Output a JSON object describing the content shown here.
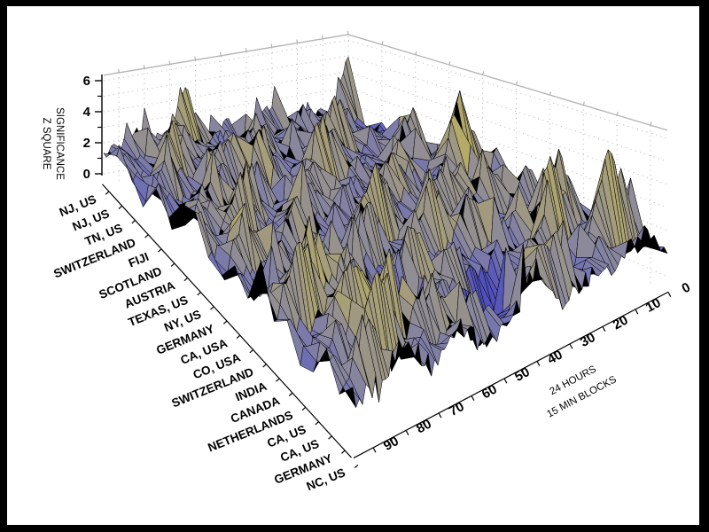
{
  "frame": {
    "border_color": "#000000",
    "panel_color": "#ffffff"
  },
  "chart_data": {
    "type": "surface3d",
    "title": "",
    "x_axis": {
      "title_line1": "24 HOURS",
      "title_line2": "15 MIN BLOCKS",
      "tick_values": [
        90,
        80,
        70,
        60,
        50,
        40,
        30,
        20,
        10,
        0
      ],
      "tick_labels": [
        "90",
        "80",
        "70",
        "60",
        "50",
        "40",
        "30",
        "20",
        "10",
        "0"
      ],
      "minor_tick_step": 5,
      "range": [
        0,
        96
      ]
    },
    "z_axis": {
      "title_line1": "SIGNIFICANCE",
      "title_line2": "Z SQUARE",
      "tick_values": [
        0,
        2,
        4,
        6
      ],
      "tick_labels": [
        "0",
        "2",
        "4",
        "6"
      ],
      "minor_tick_values": [
        1,
        3,
        5
      ],
      "range": [
        -0.6,
        6.35
      ]
    },
    "y_axis": {
      "categories": [
        "NJ, US",
        "NJ, US",
        "TN, US",
        "SWITZERLAND",
        "FIJI",
        "SCOTLAND",
        "AUSTRIA",
        "TEXAS, US",
        "NY, US",
        "GERMANY",
        "CA, USA",
        "CO, USA",
        "SWITZERLAND",
        "INDIA",
        "CANADA",
        "NETHERLANDS",
        "CA, US",
        "CA, US",
        "GERMANY",
        "NC, US"
      ]
    },
    "grid_on": true,
    "legend": "none",
    "wall_grid_color": "#b2b2b2",
    "box_edge_color": "#b2b2b2",
    "mesh_line_color": "#000000",
    "backface_color": "#000000",
    "colormap_stops": [
      [
        -1.0,
        "#1e1e78"
      ],
      [
        -0.2,
        "#2e2ea0"
      ],
      [
        0.6,
        "#5050bc"
      ],
      [
        1.4,
        "#7272b2"
      ],
      [
        2.2,
        "#8f8c96"
      ],
      [
        3.0,
        "#a39b7c"
      ],
      [
        3.8,
        "#b8af64"
      ],
      [
        4.8,
        "#d4ca4e"
      ],
      [
        6.3,
        "#f2e83a"
      ]
    ],
    "z_grid_blocks": [
      0,
      8,
      16,
      24,
      32,
      40,
      48,
      56,
      64,
      72,
      80,
      88,
      96
    ],
    "z_grid": [
      [
        5.0,
        1.4,
        2.0,
        1.2,
        2.6,
        1.5,
        2.2,
        1.0,
        4.8,
        1.6,
        2.4,
        1.8,
        1.2
      ],
      [
        0.8,
        2.2,
        1.4,
        2.8,
        1.2,
        2.0,
        1.0,
        2.4,
        1.6,
        3.0,
        1.2,
        1.8,
        2.2
      ],
      [
        1.5,
        1.0,
        3.2,
        1.2,
        2.5,
        1.5,
        3.5,
        1.0,
        2.2,
        1.4,
        4.2,
        1.2,
        1.6
      ],
      [
        0.6,
        1.8,
        1.2,
        4.5,
        1.0,
        2.2,
        1.4,
        1.8,
        3.8,
        1.2,
        2.0,
        3.2,
        0.8
      ],
      [
        1.8,
        1.2,
        2.6,
        1.0,
        3.4,
        1.8,
        1.2,
        4.4,
        1.4,
        2.6,
        1.6,
        1.2,
        2.4
      ],
      [
        1.0,
        3.6,
        1.4,
        2.0,
        1.2,
        4.8,
        1.6,
        1.2,
        2.8,
        1.0,
        3.4,
        1.8,
        1.2
      ],
      [
        2.2,
        1.2,
        1.8,
        1.4,
        2.4,
        1.2,
        3.0,
        1.6,
        1.2,
        3.6,
        1.4,
        2.6,
        1.8
      ],
      [
        1.4,
        2.8,
        1.0,
        3.2,
        1.4,
        2.2,
        1.2,
        2.6,
        1.8,
        1.2,
        4.6,
        1.4,
        3.0
      ],
      [
        1.2,
        6.0,
        1.4,
        2.2,
        3.6,
        1.2,
        2.6,
        1.4,
        3.0,
        1.6,
        1.4,
        2.4,
        1.2
      ],
      [
        2.6,
        1.4,
        2.0,
        1.2,
        1.8,
        3.4,
        1.2,
        1.8,
        1.4,
        2.8,
        1.6,
        4.0,
        1.0
      ],
      [
        1.2,
        2.4,
        1.2,
        4.2,
        1.6,
        1.2,
        5.2,
        1.4,
        2.0,
        1.2,
        3.0,
        1.4,
        2.6
      ],
      [
        1.8,
        1.2,
        3.4,
        1.4,
        2.8,
        1.8,
        1.4,
        3.8,
        1.2,
        2.4,
        1.4,
        1.8,
        1.2
      ],
      [
        1.0,
        3.0,
        1.4,
        1.8,
        1.2,
        4.4,
        1.8,
        1.2,
        2.6,
        1.6,
        4.8,
        1.2,
        3.6
      ],
      [
        2.4,
        1.4,
        2.2,
        1.2,
        3.6,
        1.4,
        2.0,
        1.6,
        1.2,
        3.4,
        1.8,
        5.0,
        1.4
      ],
      [
        1.2,
        4.6,
        1.2,
        2.6,
        1.4,
        1.8,
        1.2,
        4.2,
        1.6,
        1.2,
        2.8,
        1.4,
        2.0
      ],
      [
        1.6,
        1.2,
        5.4,
        1.4,
        2.2,
        1.2,
        3.2,
        1.2,
        -0.6,
        2.0,
        4.4,
        1.8,
        1.2
      ],
      [
        1.0,
        2.0,
        1.4,
        3.0,
        1.2,
        -0.8,
        1.6,
        2.4,
        1.2,
        4.8,
        1.4,
        2.6,
        1.6
      ],
      [
        2.0,
        5.6,
        1.2,
        1.6,
        2.8,
        1.2,
        -0.4,
        1.4,
        3.6,
        1.4,
        5.2,
        1.2,
        2.2
      ],
      [
        1.4,
        1.2,
        2.4,
        1.2,
        4.0,
        1.6,
        1.2,
        2.8,
        1.4,
        2.2,
        1.2,
        3.8,
        1.4
      ],
      [
        1.2,
        2.6,
        1.4,
        1.8,
        1.2,
        3.4,
        1.6,
        1.2,
        2.4,
        1.4,
        3.2,
        1.4,
        1.8
      ]
    ],
    "fine_columns": 97,
    "jitter_seed": 11,
    "jitter_amp": 0.5
  }
}
